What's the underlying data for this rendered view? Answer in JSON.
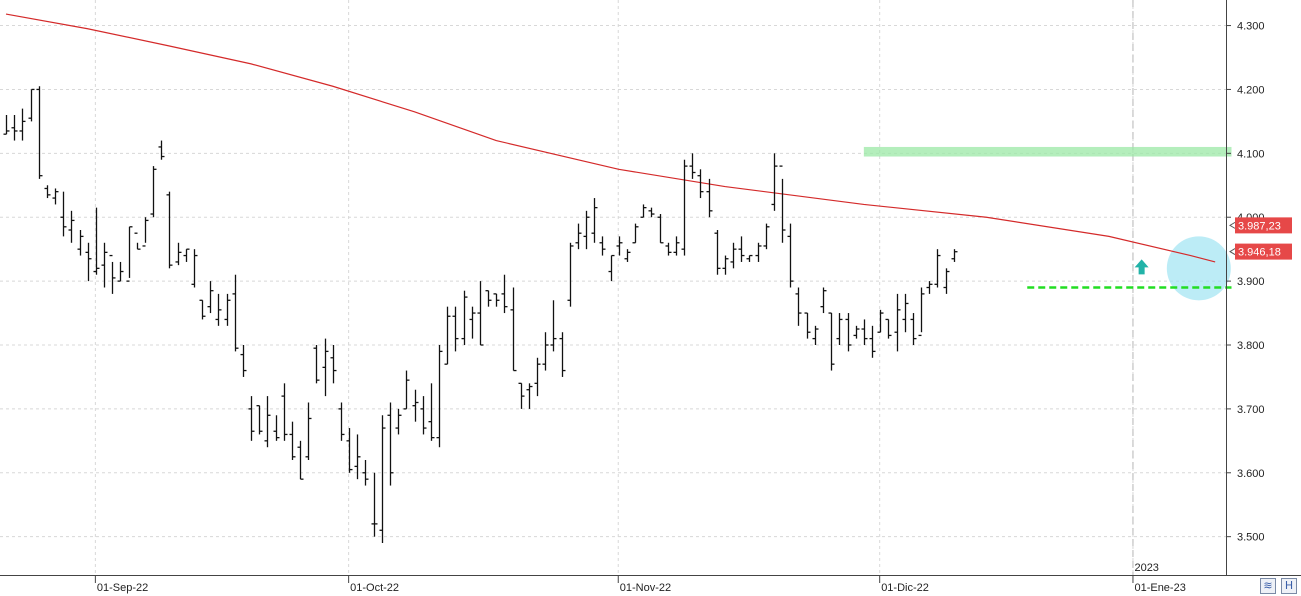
{
  "chart_data": {
    "type": "ohlc",
    "x_axis": {
      "labels": [
        {
          "label": "01-Sep-22",
          "index": 11
        },
        {
          "label": "01-Oct-22",
          "index": 42
        },
        {
          "label": "01-Nov-22",
          "index": 75
        },
        {
          "label": "01-Dic-22",
          "index": 107
        },
        {
          "label": "01-Ene-23",
          "index": 138
        }
      ],
      "year_marker": {
        "label": "2023",
        "index": 138
      }
    },
    "y_axis": {
      "ticks": [
        3500,
        3600,
        3700,
        3800,
        3900,
        4000,
        4100,
        4200,
        4300
      ],
      "tick_labels": [
        "3.500",
        "3.600",
        "3.700",
        "3.800",
        "3.900",
        "4.000",
        "4.100",
        "4.200",
        "4.300"
      ],
      "range": [
        3440,
        4340
      ]
    },
    "bars": [
      [
        4160,
        4130,
        4130,
        4135
      ],
      [
        4160,
        4120,
        4140,
        4135
      ],
      [
        4170,
        4120,
        4135,
        4150
      ],
      [
        4200,
        4150,
        4155,
        4200
      ],
      [
        4205,
        4060,
        4200,
        4065
      ],
      [
        4050,
        4030,
        4045,
        4035
      ],
      [
        4045,
        4020,
        4030,
        4040
      ],
      [
        4040,
        3970,
        4000,
        3985
      ],
      [
        4010,
        3960,
        3980,
        3995
      ],
      [
        3980,
        3940,
        3950,
        3970
      ],
      [
        3960,
        3900,
        3945,
        3935
      ],
      [
        4015,
        3910,
        3915,
        3920
      ],
      [
        3960,
        3890,
        3925,
        3945
      ],
      [
        3930,
        3880,
        3940,
        3905
      ],
      [
        3930,
        3900,
        3900,
        3915
      ],
      [
        3985,
        3905,
        3900,
        3985
      ],
      [
        3960,
        3950,
        3975,
        3950
      ],
      [
        4000,
        3960,
        3955,
        3995
      ],
      [
        4080,
        4000,
        4005,
        4075
      ],
      [
        4120,
        4090,
        4110,
        4095
      ],
      [
        4040,
        3920,
        4035,
        3925
      ],
      [
        3960,
        3925,
        3930,
        3945
      ],
      [
        3950,
        3930,
        3940,
        3950
      ],
      [
        3950,
        3890,
        3895,
        3940
      ],
      [
        3870,
        3840,
        3870,
        3845
      ],
      [
        3900,
        3850,
        3860,
        3885
      ],
      [
        3880,
        3830,
        3840,
        3855
      ],
      [
        3880,
        3830,
        3840,
        3870
      ],
      [
        3910,
        3790,
        3880,
        3795
      ],
      [
        3800,
        3750,
        3785,
        3760
      ],
      [
        3720,
        3650,
        3700,
        3665
      ],
      [
        3705,
        3660,
        3705,
        3665
      ],
      [
        3720,
        3640,
        3650,
        3690
      ],
      [
        3690,
        3650,
        3665,
        3655
      ],
      [
        3740,
        3650,
        3720,
        3660
      ],
      [
        3680,
        3620,
        3660,
        3625
      ],
      [
        3650,
        3590,
        3640,
        3590
      ],
      [
        3710,
        3620,
        3625,
        3685
      ],
      [
        3800,
        3740,
        3795,
        3745
      ],
      [
        3810,
        3720,
        3765,
        3790
      ],
      [
        3800,
        3740,
        3780,
        3760
      ],
      [
        3710,
        3650,
        3700,
        3660
      ],
      [
        3670,
        3600,
        3650,
        3605
      ],
      [
        3660,
        3590,
        3610,
        3625
      ],
      [
        3620,
        3580,
        3600,
        3590
      ],
      [
        3600,
        3500,
        3520,
        3520
      ],
      [
        3690,
        3490,
        3510,
        3670
      ],
      [
        3710,
        3580,
        3690,
        3600
      ],
      [
        3700,
        3660,
        3670,
        3690
      ],
      [
        3760,
        3700,
        3700,
        3745
      ],
      [
        3730,
        3680,
        3705,
        3710
      ],
      [
        3720,
        3660,
        3700,
        3670
      ],
      [
        3740,
        3650,
        3680,
        3655
      ],
      [
        3800,
        3640,
        3655,
        3790
      ],
      [
        3860,
        3770,
        3770,
        3845
      ],
      [
        3860,
        3790,
        3845,
        3810
      ],
      [
        3885,
        3800,
        3810,
        3875
      ],
      [
        3860,
        3810,
        3840,
        3850
      ],
      [
        3900,
        3800,
        3850,
        3800
      ],
      [
        3885,
        3860,
        3885,
        3870
      ],
      [
        3880,
        3860,
        3880,
        3870
      ],
      [
        3910,
        3850,
        3880,
        3860
      ],
      [
        3890,
        3760,
        3855,
        3760
      ],
      [
        3740,
        3700,
        3740,
        3720
      ],
      [
        3740,
        3700,
        3730,
        3735
      ],
      [
        3780,
        3720,
        3740,
        3770
      ],
      [
        3820,
        3760,
        3770,
        3800
      ],
      [
        3870,
        3790,
        3800,
        3810
      ],
      [
        3820,
        3750,
        3810,
        3760
      ],
      [
        3960,
        3860,
        3870,
        3955
      ],
      [
        3990,
        3950,
        3960,
        3975
      ],
      [
        4010,
        3950,
        3970,
        4000
      ],
      [
        4030,
        3960,
        3975,
        4015
      ],
      [
        3970,
        3940,
        3960,
        3950
      ],
      [
        3940,
        3900,
        3915,
        3940
      ],
      [
        3970,
        3940,
        3955,
        3960
      ],
      [
        3950,
        3930,
        3935,
        3945
      ],
      [
        3990,
        3960,
        3960,
        3985
      ],
      [
        4020,
        4000,
        4000,
        4015
      ],
      [
        4015,
        4000,
        4010,
        4005
      ],
      [
        4005,
        3960,
        4000,
        3960
      ],
      [
        3960,
        3940,
        3955,
        3945
      ],
      [
        3970,
        3940,
        3945,
        3960
      ],
      [
        4090,
        3940,
        3950,
        4080
      ],
      [
        4100,
        4060,
        4080,
        4070
      ],
      [
        4075,
        4030,
        4065,
        4040
      ],
      [
        4060,
        4000,
        4040,
        4010
      ],
      [
        3980,
        3910,
        3975,
        3920
      ],
      [
        3940,
        3910,
        3920,
        3935
      ],
      [
        3960,
        3920,
        3930,
        3950
      ],
      [
        3970,
        3930,
        3950,
        3940
      ],
      [
        3940,
        3930,
        3935,
        3940
      ],
      [
        3960,
        3930,
        3940,
        3955
      ],
      [
        3990,
        3950,
        3955,
        3985
      ],
      [
        4100,
        4010,
        4020,
        4080
      ],
      [
        4060,
        3960,
        4080,
        3980
      ],
      [
        3990,
        3890,
        3970,
        3900
      ],
      [
        3890,
        3830,
        3880,
        3850
      ],
      [
        3850,
        3810,
        3850,
        3820
      ],
      [
        3830,
        3800,
        3810,
        3825
      ],
      [
        3890,
        3850,
        3860,
        3885
      ],
      [
        3850,
        3760,
        3850,
        3770
      ],
      [
        3850,
        3800,
        3810,
        3840
      ],
      [
        3850,
        3790,
        3840,
        3800
      ],
      [
        3830,
        3810,
        3815,
        3825
      ],
      [
        3840,
        3800,
        3825,
        3810
      ],
      [
        3830,
        3780,
        3810,
        3790
      ],
      [
        3855,
        3820,
        3820,
        3850
      ],
      [
        3840,
        3810,
        3840,
        3815
      ],
      [
        3880,
        3790,
        3820,
        3855
      ],
      [
        3880,
        3820,
        3840,
        3865
      ],
      [
        3850,
        3800,
        3840,
        3810
      ],
      [
        3890,
        3820,
        3815,
        3880
      ],
      [
        3900,
        3880,
        3890,
        3895
      ],
      [
        3950,
        3890,
        3895,
        3940
      ],
      [
        3920,
        3880,
        3890,
        3915
      ],
      [
        3950,
        3930,
        3935,
        3946
      ]
    ],
    "moving_average": {
      "color": "#d42a2a",
      "points": [
        [
          0,
          4318
        ],
        [
          10,
          4295
        ],
        [
          20,
          4268
        ],
        [
          30,
          4240
        ],
        [
          40,
          4205
        ],
        [
          50,
          4165
        ],
        [
          60,
          4120
        ],
        [
          75,
          4075
        ],
        [
          88,
          4048
        ],
        [
          105,
          4020
        ],
        [
          120,
          4000
        ],
        [
          135,
          3970
        ],
        [
          145,
          3940
        ],
        [
          148,
          3930
        ]
      ]
    },
    "annotations": {
      "resistance_band": {
        "y_low": 4095,
        "y_high": 4110,
        "x_start": 105,
        "x_end": 150,
        "color": "#9be8a6"
      },
      "support_line": {
        "y": 3890,
        "x_start": 125,
        "x_end": 150,
        "color": "#22dd22"
      },
      "up_arrow": {
        "x": 139,
        "y": 3920,
        "color": "#22b3a8"
      },
      "highlight_circle": {
        "x": 146,
        "y": 3920,
        "color": "#9fe4f2"
      }
    },
    "price_labels": [
      {
        "value": 3987.23,
        "text": "3.987,23",
        "color": "#e64848"
      },
      {
        "value": 3946.18,
        "text": "3.946,18",
        "color": "#e64848"
      }
    ]
  },
  "ui": {
    "corner_icon_left": "zoom-toggle-icon",
    "corner_icon_right": "save-icon",
    "corner_glyph_left": "≋",
    "corner_glyph_right": "H"
  }
}
